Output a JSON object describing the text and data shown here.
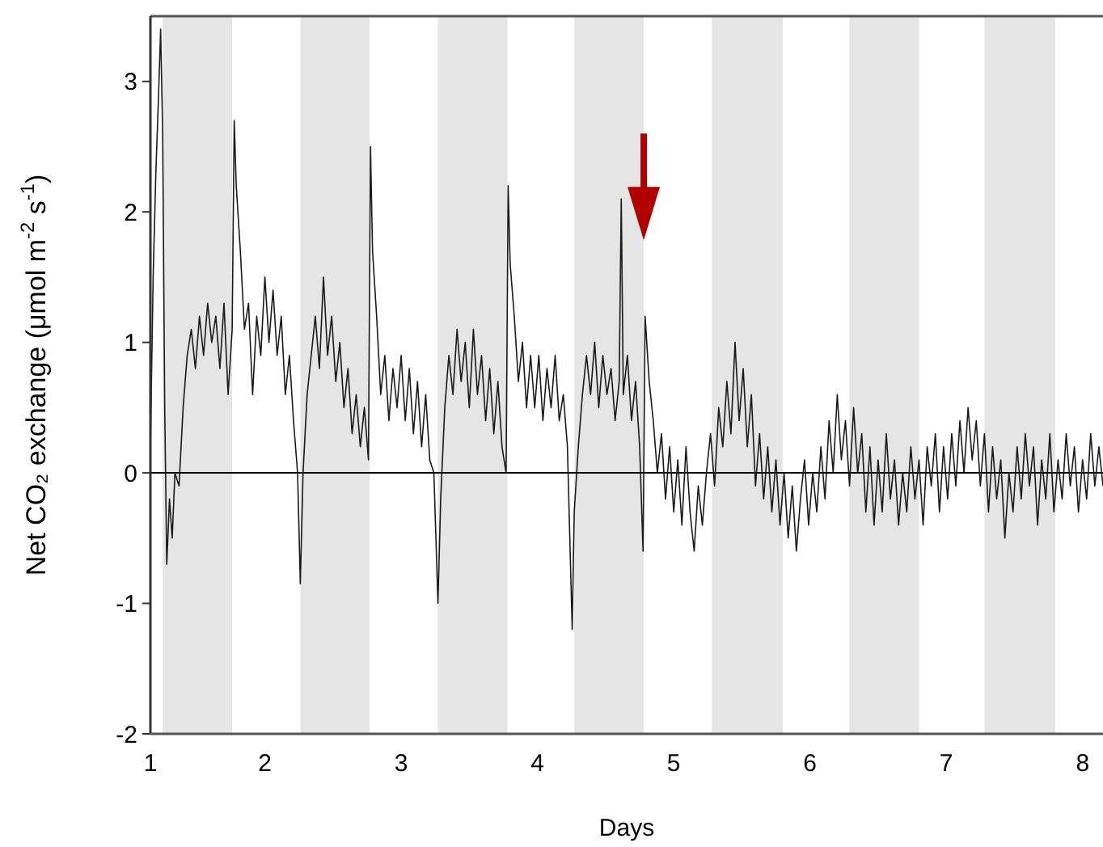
{
  "chart_data": {
    "type": "line",
    "xlabel": "Days",
    "ylabel": "Net CO₂ exchange (μmol m$^{-2}$ s$^{-1}$)",
    "xlim": [
      1.16,
      8.15
    ],
    "ylim": [
      -2,
      3.5
    ],
    "xticks": [
      {
        "value": 1.16,
        "label": "1"
      },
      2,
      3,
      4,
      5,
      6,
      7,
      8
    ],
    "yticks": [
      -2,
      -1,
      0,
      1,
      2,
      3
    ],
    "grid": false,
    "marker": "none",
    "line_style": "solid",
    "ref_lines": [
      {
        "axis": "y",
        "value": 0,
        "color": "#000000"
      }
    ],
    "bands": [
      {
        "axis": "x",
        "from": 1.25,
        "to": 1.76,
        "color": "#e5e5e5"
      },
      {
        "axis": "x",
        "from": 2.26,
        "to": 2.77,
        "color": "#e5e5e5"
      },
      {
        "axis": "x",
        "from": 3.27,
        "to": 3.78,
        "color": "#e5e5e5"
      },
      {
        "axis": "x",
        "from": 4.27,
        "to": 4.78,
        "color": "#e5e5e5"
      },
      {
        "axis": "x",
        "from": 5.28,
        "to": 5.8,
        "color": "#e5e5e5"
      },
      {
        "axis": "x",
        "from": 6.29,
        "to": 6.8,
        "color": "#e5e5e5"
      },
      {
        "axis": "x",
        "from": 7.28,
        "to": 7.8,
        "color": "#e5e5e5"
      }
    ],
    "series": [
      {
        "color": "#1a1a1a",
        "x": [
          1.16,
          1.18,
          1.2,
          1.22,
          1.235,
          1.25,
          1.265,
          1.28,
          1.3,
          1.32,
          1.34,
          1.37,
          1.4,
          1.43,
          1.46,
          1.49,
          1.52,
          1.55,
          1.58,
          1.61,
          1.64,
          1.67,
          1.7,
          1.73,
          1.76,
          1.775,
          1.79,
          1.82,
          1.85,
          1.88,
          1.91,
          1.94,
          1.97,
          2.0,
          2.03,
          2.06,
          2.09,
          2.12,
          2.15,
          2.18,
          2.21,
          2.24,
          2.26,
          2.28,
          2.31,
          2.34,
          2.37,
          2.4,
          2.43,
          2.46,
          2.49,
          2.52,
          2.55,
          2.58,
          2.61,
          2.64,
          2.67,
          2.7,
          2.73,
          2.76,
          2.775,
          2.79,
          2.82,
          2.85,
          2.88,
          2.91,
          2.94,
          2.97,
          3.0,
          3.03,
          3.06,
          3.09,
          3.12,
          3.15,
          3.18,
          3.21,
          3.24,
          3.27,
          3.29,
          3.32,
          3.35,
          3.38,
          3.41,
          3.44,
          3.47,
          3.5,
          3.53,
          3.56,
          3.59,
          3.62,
          3.65,
          3.68,
          3.71,
          3.74,
          3.77,
          3.785,
          3.8,
          3.83,
          3.86,
          3.89,
          3.92,
          3.95,
          3.98,
          4.01,
          4.04,
          4.07,
          4.1,
          4.13,
          4.16,
          4.19,
          4.22,
          4.255,
          4.27,
          4.3,
          4.33,
          4.36,
          4.39,
          4.42,
          4.45,
          4.48,
          4.51,
          4.54,
          4.57,
          4.6,
          4.615,
          4.63,
          4.66,
          4.69,
          4.72,
          4.75,
          4.775,
          4.79,
          4.82,
          4.85,
          4.88,
          4.91,
          4.94,
          4.97,
          5.0,
          5.03,
          5.06,
          5.09,
          5.12,
          5.15,
          5.18,
          5.21,
          5.24,
          5.27,
          5.3,
          5.33,
          5.36,
          5.39,
          5.42,
          5.45,
          5.48,
          5.51,
          5.54,
          5.57,
          5.6,
          5.63,
          5.66,
          5.69,
          5.72,
          5.75,
          5.78,
          5.81,
          5.84,
          5.87,
          5.9,
          5.93,
          5.96,
          5.99,
          6.02,
          6.05,
          6.08,
          6.11,
          6.14,
          6.17,
          6.2,
          6.23,
          6.26,
          6.29,
          6.32,
          6.35,
          6.38,
          6.41,
          6.44,
          6.47,
          6.5,
          6.53,
          6.56,
          6.59,
          6.62,
          6.65,
          6.68,
          6.71,
          6.74,
          6.77,
          6.8,
          6.83,
          6.86,
          6.89,
          6.92,
          6.95,
          6.98,
          7.01,
          7.04,
          7.07,
          7.1,
          7.13,
          7.16,
          7.19,
          7.22,
          7.25,
          7.28,
          7.31,
          7.34,
          7.37,
          7.4,
          7.43,
          7.46,
          7.49,
          7.52,
          7.55,
          7.58,
          7.61,
          7.64,
          7.67,
          7.7,
          7.73,
          7.76,
          7.79,
          7.82,
          7.85,
          7.88,
          7.91,
          7.94,
          7.97,
          8.0,
          8.03,
          8.06,
          8.09,
          8.12,
          8.15
        ],
        "values": [
          0.2,
          1.5,
          2.3,
          2.9,
          3.4,
          2.6,
          0.5,
          -0.7,
          -0.2,
          -0.5,
          0.0,
          -0.1,
          0.5,
          0.9,
          1.1,
          0.8,
          1.2,
          0.9,
          1.3,
          1.0,
          1.2,
          0.8,
          1.3,
          0.6,
          1.1,
          2.7,
          2.2,
          1.7,
          1.1,
          1.3,
          0.6,
          1.2,
          0.9,
          1.5,
          1.0,
          1.4,
          0.9,
          1.2,
          0.6,
          0.9,
          0.4,
          0.0,
          -0.85,
          0.0,
          0.6,
          0.9,
          1.2,
          0.8,
          1.5,
          0.9,
          1.2,
          0.7,
          1.0,
          0.5,
          0.8,
          0.3,
          0.6,
          0.2,
          0.5,
          0.1,
          2.5,
          1.7,
          1.2,
          0.6,
          0.9,
          0.4,
          0.8,
          0.5,
          0.9,
          0.4,
          0.8,
          0.3,
          0.7,
          0.2,
          0.6,
          0.1,
          0.0,
          -1.0,
          -0.2,
          0.5,
          0.9,
          0.6,
          1.1,
          0.7,
          1.0,
          0.5,
          1.1,
          0.6,
          0.9,
          0.4,
          0.8,
          0.3,
          0.7,
          0.2,
          0.0,
          2.2,
          1.6,
          1.2,
          0.7,
          1.0,
          0.5,
          0.9,
          0.5,
          0.9,
          0.4,
          0.8,
          0.5,
          0.9,
          0.4,
          0.6,
          0.2,
          -1.2,
          -0.3,
          0.2,
          0.6,
          0.9,
          0.6,
          1.0,
          0.5,
          0.9,
          0.6,
          0.8,
          0.4,
          0.7,
          2.1,
          0.6,
          0.9,
          0.4,
          0.7,
          0.2,
          -0.6,
          1.2,
          0.7,
          0.4,
          0.0,
          0.3,
          -0.2,
          0.2,
          -0.3,
          0.1,
          -0.4,
          0.2,
          -0.3,
          -0.6,
          -0.1,
          -0.4,
          0.0,
          0.3,
          -0.1,
          0.5,
          0.2,
          0.7,
          0.3,
          1.0,
          0.4,
          0.8,
          0.2,
          0.6,
          -0.1,
          0.3,
          -0.2,
          0.2,
          -0.3,
          0.1,
          -0.4,
          0.0,
          -0.5,
          -0.1,
          -0.6,
          -0.2,
          0.1,
          -0.4,
          0.0,
          -0.3,
          0.2,
          -0.2,
          0.4,
          0.0,
          0.6,
          0.1,
          0.4,
          -0.1,
          0.5,
          0.0,
          0.3,
          -0.3,
          0.2,
          -0.4,
          0.1,
          -0.3,
          0.3,
          -0.2,
          0.1,
          -0.4,
          0.0,
          -0.3,
          0.2,
          -0.2,
          0.1,
          -0.4,
          0.2,
          -0.1,
          0.3,
          -0.3,
          0.2,
          -0.2,
          0.3,
          -0.1,
          0.4,
          0.0,
          0.5,
          0.1,
          0.4,
          -0.1,
          0.3,
          -0.3,
          0.2,
          -0.2,
          0.1,
          -0.5,
          0.0,
          -0.3,
          0.2,
          -0.2,
          0.3,
          -0.1,
          0.2,
          -0.4,
          0.1,
          -0.2,
          0.3,
          -0.3,
          0.1,
          -0.2,
          0.3,
          -0.1,
          0.2,
          -0.3,
          0.1,
          -0.2,
          0.3,
          -0.1,
          0.2,
          -0.1
        ]
      }
    ]
  }
}
